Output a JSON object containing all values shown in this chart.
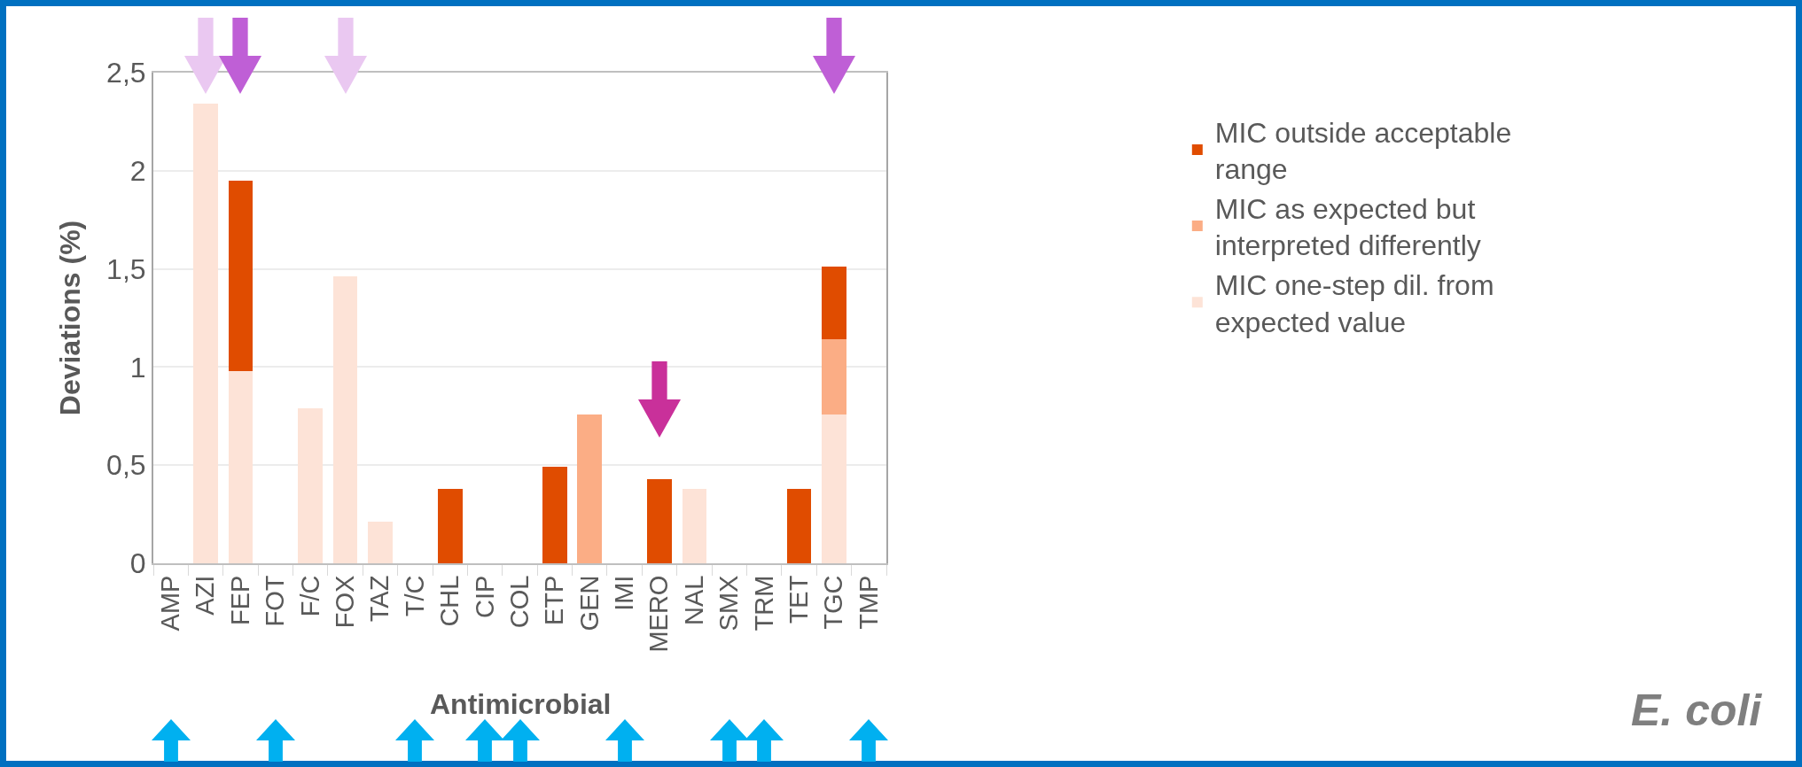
{
  "chart_data": {
    "type": "bar",
    "stacked": true,
    "ylabel": "Deviations (%)",
    "xlabel": "Antimicrobial",
    "categories": [
      "AMP",
      "AZI",
      "FEP",
      "FOT",
      "F/C",
      "FOX",
      "TAZ",
      "T/C",
      "CHL",
      "CIP",
      "COL",
      "ETP",
      "GEN",
      "IMI",
      "MERO",
      "NAL",
      "SMX",
      "TRM",
      "TET",
      "TGC",
      "TMP"
    ],
    "series": [
      {
        "name": "MIC one-step dil. from expected value",
        "color": "#fde3d7",
        "values": [
          0,
          2.34,
          0.98,
          0,
          0.79,
          1.46,
          0.21,
          0,
          0,
          0,
          0,
          0,
          0,
          0,
          0,
          0.38,
          0,
          0,
          0,
          0.76,
          0
        ]
      },
      {
        "name": "MIC as expected but interpreted differently",
        "color": "#fbad85",
        "values": [
          0,
          0,
          0,
          0,
          0,
          0,
          0,
          0,
          0,
          0,
          0,
          0,
          0.76,
          0,
          0,
          0,
          0,
          0,
          0,
          0.38,
          0
        ]
      },
      {
        "name": "MIC outside acceptable range",
        "color": "#e04c00",
        "values": [
          0,
          0,
          0.97,
          0,
          0,
          0,
          0,
          0,
          0.38,
          0,
          0,
          0.49,
          0,
          0,
          0.43,
          0,
          0,
          0,
          0.38,
          0.37,
          0
        ]
      }
    ],
    "ylim": [
      0,
      2.5
    ],
    "yticks": [
      0,
      {
        "value": 0.5,
        "label": "0,5"
      },
      1,
      {
        "value": 1.5,
        "label": "1,5"
      },
      2,
      {
        "value": 2.5,
        "label": "2,5"
      }
    ],
    "grid": "y",
    "legend": "right",
    "annotations": [
      "E. coli"
    ]
  }
}
